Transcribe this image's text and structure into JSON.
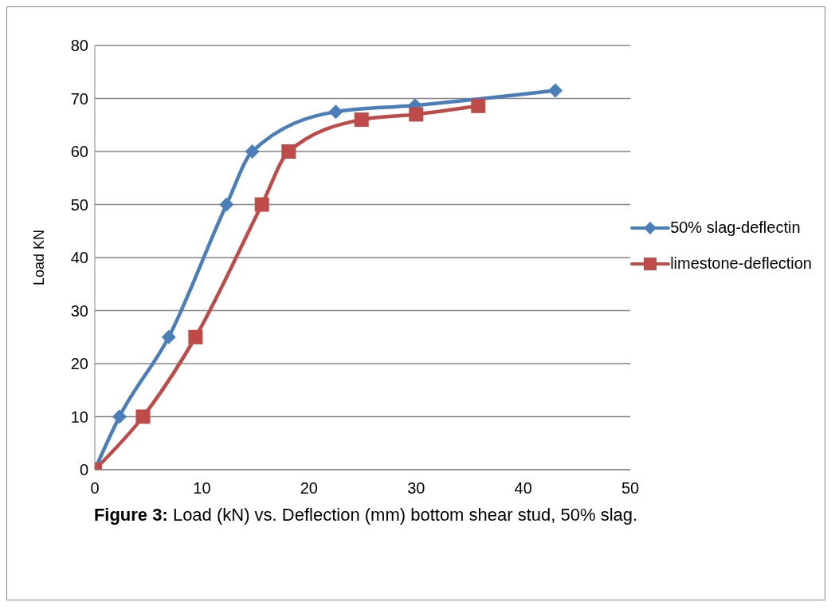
{
  "chart_data": {
    "type": "line",
    "title": "Figure 3: Load (kN) vs. Deflection (mm) bottom shear stud, 50% slag.",
    "ylabel": "Load KN",
    "xlim": [
      0,
      50
    ],
    "xticks": [
      0,
      10,
      20,
      30,
      40,
      50
    ],
    "ylim": [
      0,
      80
    ],
    "yticks": [
      0,
      10,
      20,
      30,
      40,
      50,
      60,
      70,
      80
    ],
    "grid": "y",
    "legend": "right",
    "line_style": "solid",
    "series": [
      {
        "name": "50% slag-deflectin",
        "color": "#4a7ebb",
        "marker": "diamond",
        "x": [
          0,
          2.3,
          6.9,
          12.3,
          14.7,
          22.5,
          29.9,
          43.0
        ],
        "values": [
          0,
          10,
          25,
          50,
          60,
          67.5,
          68.7,
          71.5
        ]
      },
      {
        "name": "limestone-deflection",
        "color": "#be4b48",
        "marker": "square",
        "x": [
          0,
          4.5,
          9.4,
          15.6,
          18.1,
          24.9,
          30.0,
          35.8
        ],
        "values": [
          0,
          10,
          25,
          50,
          60,
          66,
          67,
          68.6
        ]
      }
    ]
  }
}
